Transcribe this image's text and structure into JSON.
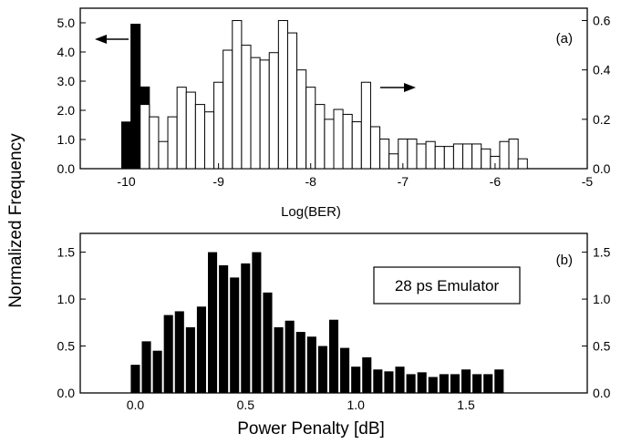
{
  "ylabel": "Normalized Frequency",
  "chart_data": [
    {
      "type": "bar",
      "panel": "(a)",
      "xlabel": "Log(BER)",
      "xlim": [
        -10.5,
        -5
      ],
      "xticks": [
        "-10",
        "-9",
        "-8",
        "-7",
        "-6",
        "-5"
      ],
      "xtick_values": [
        -10,
        -9,
        -8,
        -7,
        -6,
        -5
      ],
      "ylim_left": [
        0,
        5.5
      ],
      "yticks_left": [
        "0.0",
        "1.0",
        "2.0",
        "3.0",
        "4.0",
        "5.0"
      ],
      "ytick_values_left": [
        0,
        1,
        2,
        3,
        4,
        5
      ],
      "ylim_right": [
        0,
        0.65
      ],
      "yticks_right": [
        "0.0",
        "0.2",
        "0.4",
        "0.6"
      ],
      "ytick_values_right": [
        0,
        0.2,
        0.4,
        0.6
      ],
      "bin_width": 0.1,
      "series": [
        {
          "style": "filled",
          "axis": "left",
          "x": [
            -10.0,
            -9.9,
            -9.8,
            -9.7
          ],
          "values": [
            1.6,
            4.95,
            2.8,
            0.55
          ]
        },
        {
          "style": "open",
          "axis": "right",
          "x": [
            -9.8,
            -9.7,
            -9.6,
            -9.5,
            -9.4,
            -9.3,
            -9.2,
            -9.1,
            -9.0,
            -8.9,
            -8.8,
            -8.7,
            -8.6,
            -8.5,
            -8.4,
            -8.3,
            -8.2,
            -8.1,
            -8.0,
            -7.9,
            -7.8,
            -7.7,
            -7.6,
            -7.5,
            -7.4,
            -7.3,
            -7.2,
            -7.1,
            -7.0,
            -6.9,
            -6.8,
            -6.7,
            -6.6,
            -6.5,
            -6.4,
            -6.3,
            -6.2,
            -6.1,
            -6.0,
            -5.9,
            -5.8,
            -5.7
          ],
          "values": [
            0.26,
            0.21,
            0.11,
            0.21,
            0.33,
            0.31,
            0.26,
            0.23,
            0.35,
            0.48,
            0.6,
            0.5,
            0.45,
            0.44,
            0.47,
            0.6,
            0.55,
            0.4,
            0.33,
            0.26,
            0.2,
            0.24,
            0.22,
            0.19,
            0.35,
            0.17,
            0.12,
            0.06,
            0.12,
            0.12,
            0.1,
            0.11,
            0.09,
            0.09,
            0.1,
            0.1,
            0.1,
            0.08,
            0.05,
            0.11,
            0.12,
            0.04
          ]
        }
      ],
      "annotations": [
        "left-arrow",
        "right-arrow"
      ]
    },
    {
      "type": "bar",
      "panel": "(b)",
      "xlabel": "Power Penalty [dB]",
      "xlim": [
        -0.25,
        2.05
      ],
      "xticks": [
        "0.0",
        "0.5",
        "1.0",
        "1.5"
      ],
      "xtick_values": [
        0,
        0.5,
        1.0,
        1.5
      ],
      "ylim": [
        0,
        1.7
      ],
      "yticks": [
        "0.0",
        "0.5",
        "1.0",
        "1.5"
      ],
      "ytick_values": [
        0,
        0.5,
        1.0,
        1.5
      ],
      "bin_width": 0.05,
      "legend_box": "28 ps Emulator",
      "x": [
        0.0,
        0.05,
        0.1,
        0.15,
        0.2,
        0.25,
        0.3,
        0.35,
        0.4,
        0.45,
        0.5,
        0.55,
        0.6,
        0.65,
        0.7,
        0.75,
        0.8,
        0.85,
        0.9,
        0.95,
        1.0,
        1.05,
        1.1,
        1.15,
        1.2,
        1.25,
        1.3,
        1.35,
        1.4,
        1.45,
        1.5,
        1.55,
        1.6,
        1.65
      ],
      "values": [
        0.3,
        0.55,
        0.45,
        0.83,
        0.87,
        0.7,
        0.92,
        1.5,
        1.36,
        1.23,
        1.38,
        1.5,
        1.07,
        0.7,
        0.77,
        0.65,
        0.6,
        0.5,
        0.78,
        0.48,
        0.28,
        0.38,
        0.25,
        0.23,
        0.28,
        0.2,
        0.22,
        0.17,
        0.2,
        0.2,
        0.25,
        0.2,
        0.2,
        0.25
      ]
    }
  ]
}
